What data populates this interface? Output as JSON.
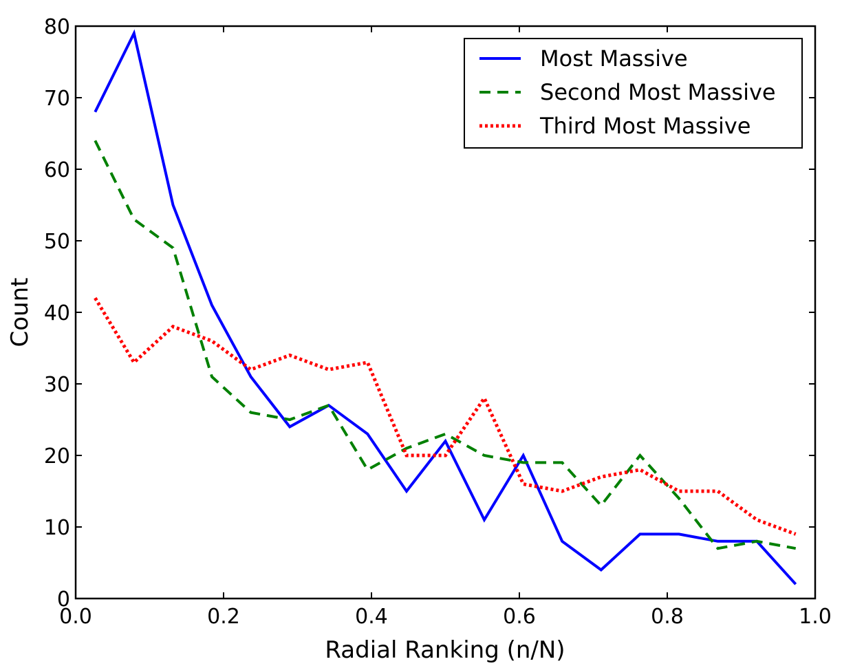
{
  "chart_data": {
    "type": "line",
    "xlabel": "Radial Ranking (n/N)",
    "ylabel": "Count",
    "xlim": [
      0.0,
      1.0
    ],
    "ylim": [
      0,
      80
    ],
    "xticks": [
      "0.0",
      "0.2",
      "0.4",
      "0.6",
      "0.8",
      "1.0"
    ],
    "yticks": [
      "0",
      "10",
      "20",
      "30",
      "40",
      "50",
      "60",
      "70",
      "80"
    ],
    "grid": false,
    "legend_position": "top-right",
    "x": [
      0.0263,
      0.0789,
      0.1316,
      0.1842,
      0.2368,
      0.2895,
      0.3421,
      0.3947,
      0.4474,
      0.5,
      0.5526,
      0.6053,
      0.6579,
      0.7105,
      0.7632,
      0.8158,
      0.8684,
      0.9211,
      0.9737
    ],
    "series": [
      {
        "name": "Most Massive",
        "color": "#0000ff",
        "style": "solid",
        "values": [
          68,
          79,
          55,
          41,
          31,
          24,
          27,
          23,
          15,
          22,
          11,
          20,
          8,
          4,
          9,
          9,
          8,
          8,
          2
        ]
      },
      {
        "name": "Second Most Massive",
        "color": "#008000",
        "style": "dashed",
        "values": [
          64,
          53,
          49,
          31,
          26,
          25,
          27,
          18,
          21,
          23,
          20,
          19,
          19,
          13,
          20,
          14,
          7,
          8,
          7
        ]
      },
      {
        "name": "Third Most Massive",
        "color": "#ff0000",
        "style": "dotted",
        "values": [
          42,
          33,
          38,
          36,
          32,
          34,
          32,
          33,
          20,
          20,
          28,
          16,
          15,
          17,
          18,
          15,
          15,
          11,
          9
        ]
      }
    ]
  }
}
